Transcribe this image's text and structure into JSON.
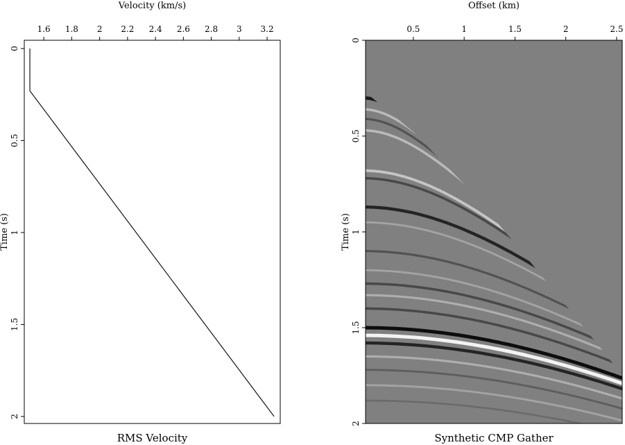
{
  "chart_data": [
    {
      "type": "line",
      "title": "RMS Velocity",
      "xlabel": "Velocity (km/s)",
      "ylabel": "Time (s)",
      "x": [
        1.5,
        1.5,
        3.25
      ],
      "values": [
        0,
        0.23,
        2
      ],
      "color": "#000000",
      "xlim": [
        1.46,
        3.294
      ],
      "xticks": [
        1.6,
        1.8,
        2,
        2.2,
        2.4,
        2.6,
        2.8,
        3,
        3.2
      ],
      "ylim": [
        -0.045,
        2.038
      ],
      "yticks": [
        0,
        0.5,
        1,
        1.5,
        2
      ],
      "y_inverted": true
    },
    {
      "type": "gather",
      "title": "Synthetic CMP Gather",
      "xlabel": "Offset (km)",
      "ylabel": "Time (s)",
      "background": "#808080",
      "events": {
        "t0": [
          0.3,
          0.36,
          0.41,
          0.47,
          0.68,
          0.72,
          0.87,
          0.95,
          1.1,
          1.2,
          1.27,
          1.33,
          1.4,
          1.5,
          1.54,
          1.58,
          1.65,
          1.72,
          1.8,
          1.88
        ],
        "amplitude": [
          -0.9,
          0.5,
          -0.4,
          0.5,
          0.6,
          -0.5,
          -0.8,
          0.3,
          -0.4,
          0.3,
          -0.5,
          0.4,
          -0.5,
          -1,
          1,
          -0.8,
          0.4,
          -0.3,
          0.3,
          -0.2
        ]
      },
      "xlim": [
        0.03,
        2.555
      ],
      "xticks": [
        0.5,
        1,
        1.5,
        2,
        2.5
      ],
      "ylim": [
        0,
        2
      ],
      "yticks": [
        0,
        0.5,
        1,
        1.5,
        2
      ],
      "y_inverted": true
    }
  ]
}
